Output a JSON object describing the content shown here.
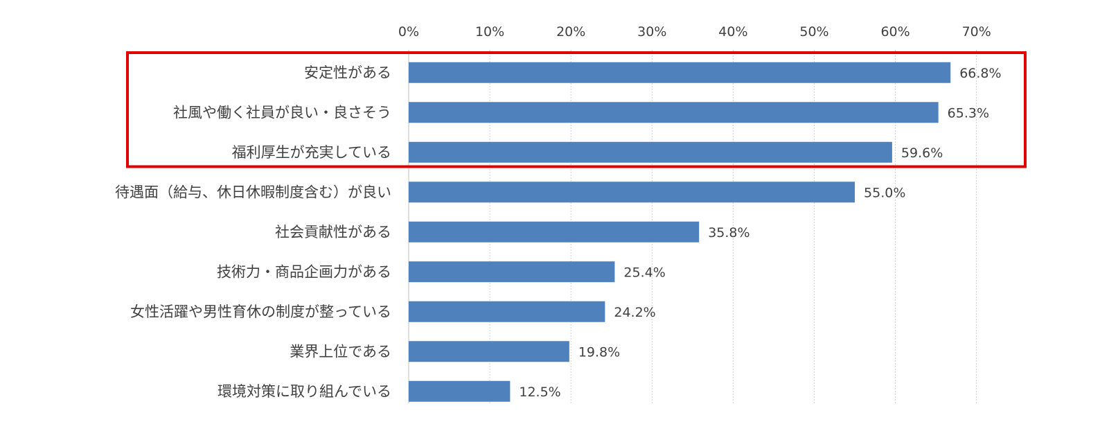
{
  "colors": {
    "bar": "#4f81bd",
    "highlight": "#e00000",
    "grid": "#d0d0d0",
    "text": "#404040"
  },
  "chart_data": {
    "type": "bar",
    "orientation": "horizontal",
    "categories": [
      "安定性がある",
      "社風や働く社員が良い・良さそう",
      "福利厚生が充実している",
      "待遇面（給与、休日休暇制度含む）が良い",
      "社会貢献性がある",
      "技術力・商品企画力がある",
      "女性活躍や男性育休の制度が整っている",
      "業界上位である",
      "環境対策に取り組んでいる"
    ],
    "values": [
      66.8,
      65.3,
      59.6,
      55.0,
      35.8,
      25.4,
      24.2,
      19.8,
      12.5
    ],
    "data_labels": [
      "66.8%",
      "65.3%",
      "59.6%",
      "55.0%",
      "35.8%",
      "25.4%",
      "24.2%",
      "19.8%",
      "12.5%"
    ],
    "x_ticks": [
      0,
      10,
      20,
      30,
      40,
      50,
      60,
      70
    ],
    "x_tick_labels": [
      "0%",
      "10%",
      "20%",
      "30%",
      "40%",
      "50%",
      "60%",
      "70%"
    ],
    "xlim": [
      0,
      74
    ],
    "axis_position": "top",
    "grid": true,
    "legend": "none",
    "highlighted_categories": [
      0,
      1,
      2
    ],
    "title": "",
    "xlabel": "",
    "ylabel": ""
  }
}
